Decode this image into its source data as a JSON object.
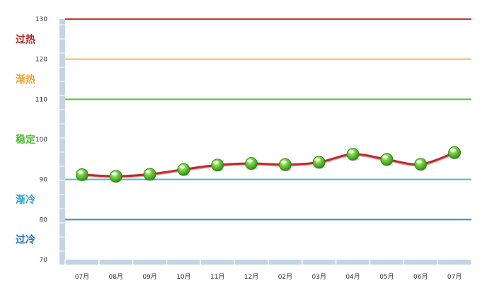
{
  "chart_data": {
    "type": "line",
    "categories": [
      "07月",
      "08月",
      "09月",
      "10月",
      "11月",
      "12月",
      "02月",
      "03月",
      "04月",
      "05月",
      "06月",
      "07月"
    ],
    "series": [
      {
        "values": [
          91.2,
          90.8,
          91.3,
          92.5,
          93.6,
          94.0,
          93.7,
          94.3,
          96.3,
          95.0,
          93.8,
          96.7
        ]
      }
    ],
    "ylim": [
      70,
      130
    ],
    "yticks": [
      130,
      120,
      110,
      100,
      90,
      80,
      70
    ],
    "reference_lines": [
      {
        "value": 130,
        "color": "#c0392b"
      },
      {
        "value": 120,
        "color": "#f5b26b"
      },
      {
        "value": 110,
        "color": "#55c438"
      },
      {
        "value": 90,
        "color": "#3cc0c8"
      },
      {
        "value": 80,
        "color": "#3a87d0"
      }
    ],
    "zone_labels": [
      {
        "text": "过热",
        "level": 125,
        "color": "#b22222"
      },
      {
        "text": "渐热",
        "level": 115,
        "color": "#f0a030"
      },
      {
        "text": "稳定",
        "level": 100,
        "color": "#4cb830"
      },
      {
        "text": "渐冷",
        "level": 85,
        "color": "#2aa0d0"
      },
      {
        "text": "过冷",
        "level": 75,
        "color": "#1e70b8"
      }
    ],
    "line_color": "#c0282c",
    "marker_color": "#4cbc24",
    "axis_color": "#c3d4e4",
    "grid": false
  }
}
